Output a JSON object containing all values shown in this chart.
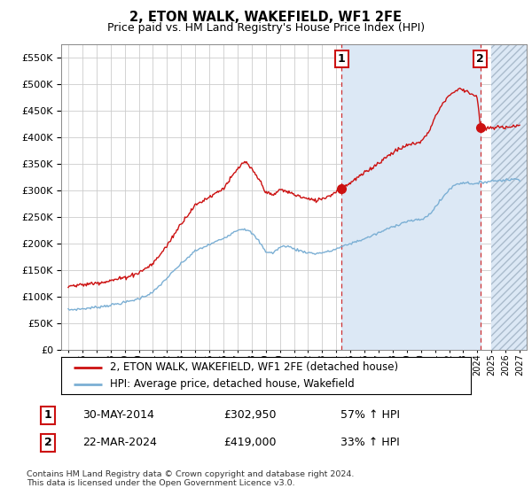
{
  "title": "2, ETON WALK, WAKEFIELD, WF1 2FE",
  "subtitle": "Price paid vs. HM Land Registry's House Price Index (HPI)",
  "ylim": [
    0,
    575000
  ],
  "yticks": [
    0,
    50000,
    100000,
    150000,
    200000,
    250000,
    300000,
    350000,
    400000,
    450000,
    500000,
    550000
  ],
  "ytick_labels": [
    "£0",
    "£50K",
    "£100K",
    "£150K",
    "£200K",
    "£250K",
    "£300K",
    "£350K",
    "£400K",
    "£450K",
    "£500K",
    "£550K"
  ],
  "hpi_color": "#7bafd4",
  "price_color": "#cc1111",
  "sale1_date": "30-MAY-2014",
  "sale1_price": 302950,
  "sale1_hpi_pct": "57%",
  "sale2_date": "22-MAR-2024",
  "sale2_price": 419000,
  "sale2_hpi_pct": "33%",
  "legend_line1": "2, ETON WALK, WAKEFIELD, WF1 2FE (detached house)",
  "legend_line2": "HPI: Average price, detached house, Wakefield",
  "footnote": "Contains HM Land Registry data © Crown copyright and database right 2024.\nThis data is licensed under the Open Government Licence v3.0.",
  "bg_color": "#ffffff",
  "plot_bg_color": "#ffffff",
  "shade_color": "#dce8f5",
  "hatch_bg_color": "#dce8f5",
  "grid_color": "#cccccc",
  "sale1_x_year": 2014.38,
  "sale2_x_year": 2024.21,
  "xmin": 1994.5,
  "xmax": 2027.5
}
